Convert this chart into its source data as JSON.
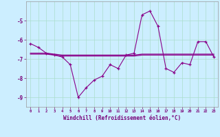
{
  "xlabel": "Windchill (Refroidissement éolien,°C)",
  "background_color": "#cceeff",
  "grid_color": "#aaddcc",
  "line_color": "#880088",
  "x_hours": [
    0,
    1,
    2,
    3,
    4,
    5,
    6,
    7,
    8,
    9,
    10,
    11,
    12,
    13,
    14,
    15,
    16,
    17,
    18,
    19,
    20,
    21,
    22,
    23
  ],
  "y_windchill": [
    -6.2,
    -6.4,
    -6.7,
    -6.8,
    -6.9,
    -7.3,
    -9.0,
    -8.5,
    -8.1,
    -7.9,
    -7.3,
    -7.5,
    -6.8,
    -6.7,
    -4.7,
    -4.5,
    -5.3,
    -7.5,
    -7.7,
    -7.2,
    -7.3,
    -6.1,
    -6.1,
    -6.9
  ],
  "y_avg1": [
    -6.7,
    -6.7,
    -6.7,
    -6.75,
    -6.8,
    -6.8,
    -6.8,
    -6.8,
    -6.8,
    -6.8,
    -6.8,
    -6.8,
    -6.8,
    -6.8,
    -6.75,
    -6.75,
    -6.75,
    -6.75,
    -6.75,
    -6.75,
    -6.75,
    -6.75,
    -6.75,
    -6.75
  ],
  "y_avg2": [
    -6.75,
    -6.75,
    -6.75,
    -6.8,
    -6.85,
    -6.85,
    -6.85,
    -6.85,
    -6.85,
    -6.85,
    -6.85,
    -6.85,
    -6.85,
    -6.85,
    -6.8,
    -6.8,
    -6.8,
    -6.8,
    -6.8,
    -6.8,
    -6.8,
    -6.8,
    -6.8,
    -6.8
  ],
  "ylim": [
    -9.5,
    -4.0
  ],
  "yticks": [
    -9,
    -8,
    -7,
    -6,
    -5
  ],
  "xticks": [
    0,
    1,
    2,
    3,
    4,
    5,
    6,
    7,
    8,
    9,
    10,
    11,
    12,
    13,
    14,
    15,
    16,
    17,
    18,
    19,
    20,
    21,
    22,
    23
  ]
}
